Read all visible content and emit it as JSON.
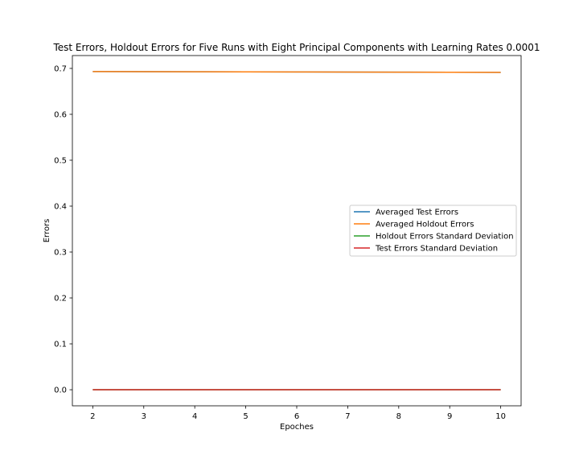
{
  "chart_data": {
    "type": "line",
    "title": "Test Errors, Holdout Errors for Five Runs with Eight Principal Components with Learning Rates 0.0001",
    "xlabel": "Epoches",
    "ylabel": "Errors",
    "x": [
      2,
      3,
      4,
      5,
      6,
      7,
      8,
      9,
      10
    ],
    "xlim": [
      1.6,
      10.4
    ],
    "ylim": [
      -0.035,
      0.728
    ],
    "xticks": [
      "2",
      "3",
      "4",
      "5",
      "6",
      "7",
      "8",
      "9",
      "10"
    ],
    "yticks": [
      "0.0",
      "0.1",
      "0.2",
      "0.3",
      "0.4",
      "0.5",
      "0.6",
      "0.7"
    ],
    "grid": false,
    "legend_position": "center-right",
    "series": [
      {
        "name": "Averaged Test Errors",
        "color": "#1f77b4",
        "values": [
          0.6931,
          0.6929,
          0.6927,
          0.6925,
          0.6922,
          0.692,
          0.6918,
          0.6916,
          0.6914
        ]
      },
      {
        "name": "Averaged Holdout Errors",
        "color": "#ff7f0e",
        "values": [
          0.6931,
          0.6929,
          0.6927,
          0.6925,
          0.6922,
          0.692,
          0.6918,
          0.6916,
          0.6914
        ]
      },
      {
        "name": "Holdout Errors Standard Deviation",
        "color": "#2ca02c",
        "values": [
          0.0001,
          0.0001,
          0.0001,
          0.0001,
          0.0001,
          0.0001,
          0.0001,
          0.0001,
          0.0001
        ]
      },
      {
        "name": "Test Errors Standard Deviation",
        "color": "#d62728",
        "values": [
          0.0001,
          0.0001,
          0.0001,
          0.0001,
          0.0001,
          0.0001,
          0.0001,
          0.0001,
          0.0001
        ]
      }
    ]
  }
}
